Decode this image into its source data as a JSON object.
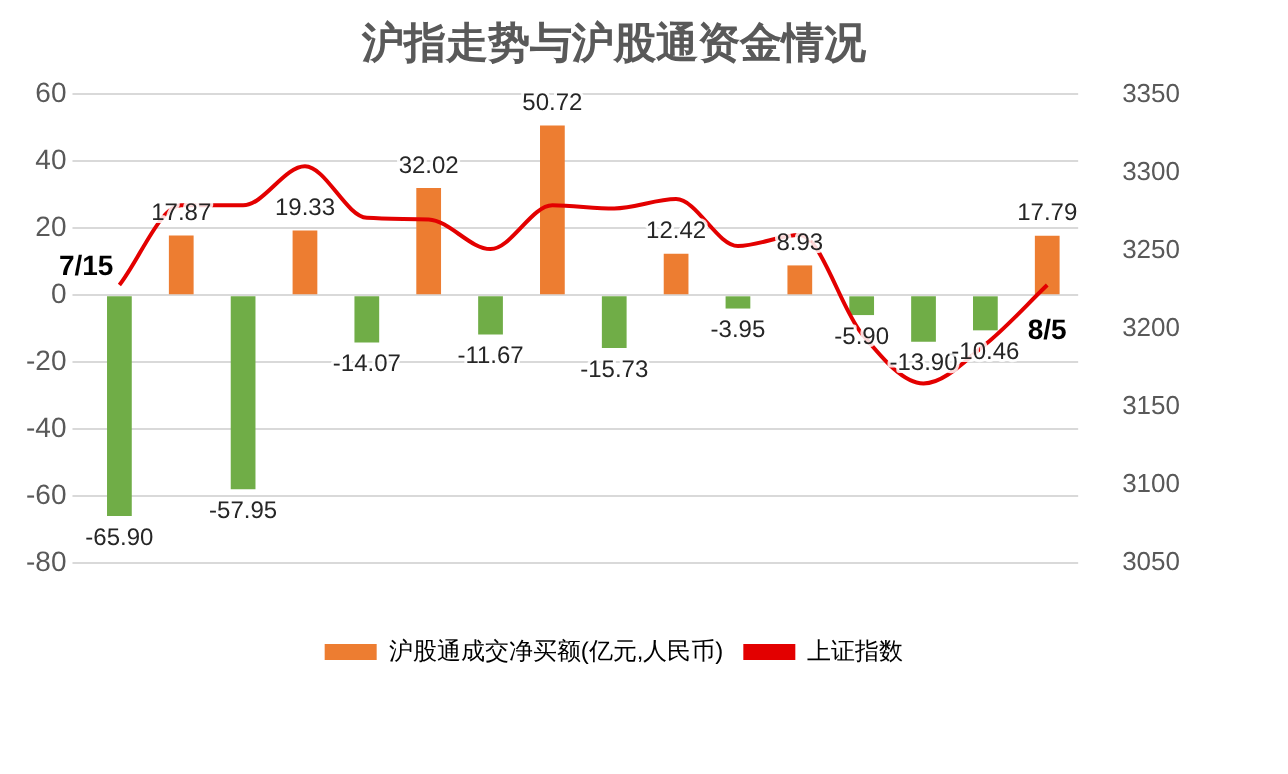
{
  "chart_data": {
    "type": "bar",
    "title": "沪指走势与沪股通资金情况",
    "categories": [
      null,
      null,
      null,
      null,
      null,
      null,
      null,
      null,
      null,
      null,
      null,
      null,
      null,
      null,
      null,
      null
    ],
    "series": [
      {
        "name": "沪股通成交净买额(亿元,人民币)",
        "color": "#ed7d31",
        "colors": [
          "#70ad47",
          "#ed7d31",
          "#70ad47",
          "#ed7d31",
          "#70ad47",
          "#ed7d31",
          "#70ad47",
          "#ed7d31",
          "#70ad47",
          "#ed7d31",
          "#70ad47",
          "#ed7d31",
          "#70ad47",
          "#70ad47",
          "#70ad47",
          "#ed7d31"
        ],
        "values": [
          -65.9,
          17.87,
          -57.95,
          19.33,
          -14.07,
          32.02,
          -11.67,
          50.72,
          -15.73,
          12.42,
          -3.95,
          8.93,
          -5.9,
          -13.9,
          -10.46,
          17.79
        ],
        "value_labels": [
          "-65.90",
          "17.87",
          "-57.95",
          "19.33",
          "-14.07",
          "32.02",
          "-11.67",
          "50.72",
          "-15.73",
          "12.42",
          "-3.95",
          "8.93",
          "-5.90",
          "-13.90",
          "-10.46",
          "17.79"
        ]
      },
      {
        "type": "line",
        "name": "上证指数",
        "color": "#e30000",
        "axis": "y2",
        "values": [
          3228,
          3279,
          3279,
          3304,
          3271,
          3270,
          3251,
          3279,
          3277,
          3283,
          3253,
          3260,
          3197,
          3165,
          3190,
          3228
        ]
      }
    ],
    "ylim": [
      -80,
      60
    ],
    "yticks": [
      -80,
      -60,
      -40,
      -20,
      0,
      20,
      40,
      60
    ],
    "y2lim": [
      3050,
      3350
    ],
    "y2ticks": [
      3050,
      3100,
      3150,
      3200,
      3250,
      3300,
      3350
    ],
    "grid": "y",
    "legend": "bottom",
    "marker": "none",
    "annotations": [
      "7/15",
      "8/5"
    ]
  }
}
